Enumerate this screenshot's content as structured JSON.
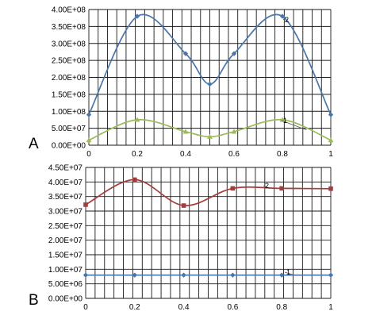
{
  "chart_data": [
    {
      "type": "line",
      "panel_label": "A",
      "xlim": [
        0,
        1
      ],
      "ylim": [
        0,
        400000000
      ],
      "x_ticks": [
        "0",
        "0.2",
        "0.4",
        "0.6",
        "0.8",
        "1"
      ],
      "y_ticks": [
        "0.00E+00",
        "5.00E+07",
        "1.00E+08",
        "1.50E+08",
        "2.00E+08",
        "2.50E+08",
        "3.00E+08",
        "3.50E+08",
        "4.00E+08"
      ],
      "grid": true,
      "series": [
        {
          "name": "2",
          "color": "#4a76a8",
          "marker": "diamond",
          "x": [
            0,
            0.2,
            0.4,
            0.5,
            0.6,
            0.8,
            1
          ],
          "values": [
            90000000,
            380000000,
            270000000,
            180000000,
            270000000,
            380000000,
            90000000
          ]
        },
        {
          "name": "1",
          "color": "#9bbb59",
          "marker": "triangle",
          "x": [
            0,
            0.2,
            0.4,
            0.5,
            0.6,
            0.8,
            1
          ],
          "values": [
            15000000,
            75000000,
            40000000,
            25000000,
            40000000,
            75000000,
            15000000
          ]
        }
      ]
    },
    {
      "type": "line",
      "panel_label": "B",
      "xlim": [
        0,
        1
      ],
      "ylim": [
        0,
        45000000
      ],
      "x_ticks": [
        "0",
        "0.2",
        "0.4",
        "0.6",
        "0.8",
        "1"
      ],
      "y_ticks": [
        "0.00E+00",
        "5.00E+06",
        "1.00E+07",
        "1.50E+07",
        "2.00E+07",
        "2.50E+07",
        "3.00E+07",
        "3.50E+07",
        "4.00E+07",
        "4.50E+07"
      ],
      "grid": true,
      "series": [
        {
          "name": "2",
          "color": "#a33c3a",
          "marker": "square",
          "x": [
            0,
            0.2,
            0.4,
            0.6,
            0.8,
            1
          ],
          "values": [
            32200000,
            40800000,
            31900000,
            37800000,
            37800000,
            37700000
          ]
        },
        {
          "name": "1",
          "color": "#4a76a8",
          "marker": "diamond",
          "x": [
            0,
            0.2,
            0.4,
            0.6,
            0.8,
            1
          ],
          "values": [
            8000000,
            8000000,
            8000000,
            8000000,
            8000000,
            8000000
          ]
        }
      ]
    }
  ]
}
